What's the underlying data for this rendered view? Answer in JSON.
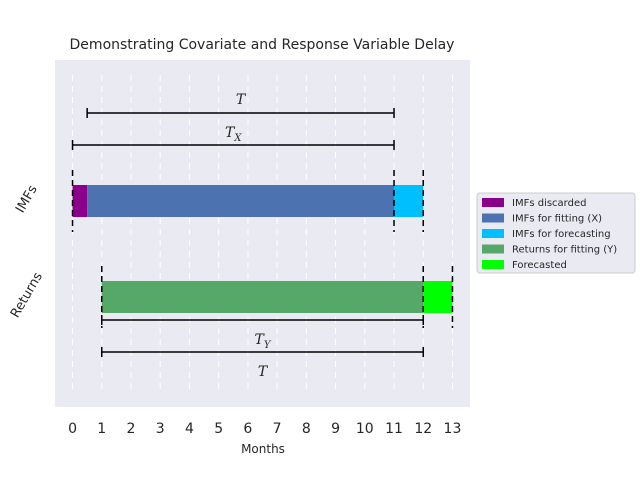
{
  "chart_data": {
    "type": "bar",
    "orientation": "horizontal",
    "title": "Demonstrating Covariate and Response Variable Delay",
    "xlabel": "Months",
    "ylabel": "",
    "xlim": [
      -0.6,
      13.6
    ],
    "xticks": [
      "0",
      "1",
      "2",
      "3",
      "4",
      "5",
      "6",
      "7",
      "8",
      "9",
      "10",
      "11",
      "12",
      "13"
    ],
    "categories": [
      "IMFs",
      "Returns"
    ],
    "grid": true,
    "legend_position": "outside-right",
    "segments": [
      {
        "name": "IMFs discarded",
        "category": "IMFs",
        "start": 0,
        "end": 0.5,
        "color": "#8B008B"
      },
      {
        "name": "IMFs for fitting (X)",
        "category": "IMFs",
        "start": 0.5,
        "end": 11,
        "color": "#4C72B0"
      },
      {
        "name": "IMFs for forecasting",
        "category": "IMFs",
        "start": 11,
        "end": 12,
        "color": "#00BFFF"
      },
      {
        "name": "Returns for fitting (Y)",
        "category": "Returns",
        "start": 1,
        "end": 12,
        "color": "#55A868"
      },
      {
        "name": "Forecasted",
        "category": "Returns",
        "start": 12,
        "end": 13,
        "color": "#00FF00"
      }
    ],
    "annotations": [
      {
        "label": "T",
        "subscript": "",
        "from": 0.5,
        "to": 11,
        "row": 0,
        "text_side": "above"
      },
      {
        "label": "T",
        "subscript": "X",
        "from": 0,
        "to": 11,
        "row": 1,
        "text_side": "above"
      },
      {
        "label": "T",
        "subscript": "Y",
        "from": 1,
        "to": 12,
        "row": 2,
        "text_side": "below"
      },
      {
        "label": "T",
        "subscript": "",
        "from": 1,
        "to": 12,
        "row": 3,
        "text_side": "below"
      }
    ],
    "dashed_markers": [
      0,
      11,
      12,
      1,
      13
    ],
    "colors": {
      "background": "#EAEAF2",
      "grid": "#ffffff",
      "line": "#000000"
    }
  }
}
